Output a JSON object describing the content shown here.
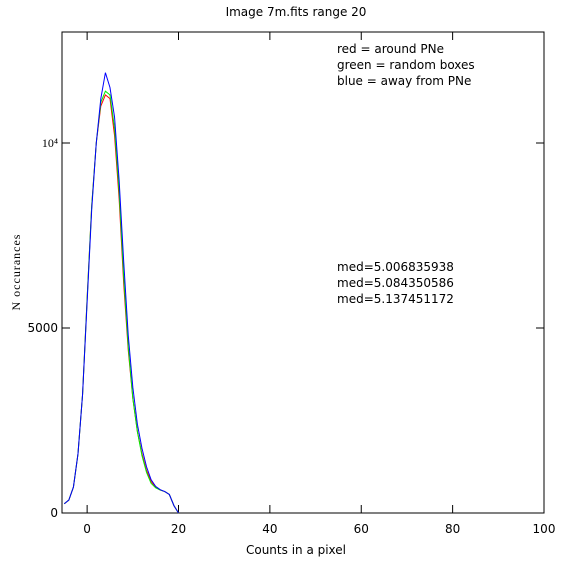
{
  "chart_data": {
    "type": "line",
    "title": "Image 7m.fits   range 20",
    "x_label": "Counts in a pixel",
    "y_label": "N occurances",
    "x": [
      -5,
      -4,
      -3,
      -2,
      -1,
      0,
      1,
      2,
      3,
      4,
      5,
      6,
      7,
      8,
      9,
      10,
      11,
      12,
      13,
      14,
      15,
      16,
      17,
      18,
      19,
      20
    ],
    "series": [
      {
        "name": "red = around PNe",
        "color": "#ff0000",
        "values": [
          250,
          350,
          700,
          1600,
          3200,
          5800,
          8300,
          10000,
          11000,
          11300,
          11200,
          10200,
          8500,
          6200,
          4400,
          3100,
          2200,
          1600,
          1150,
          850,
          700,
          620,
          580,
          500,
          200,
          0
        ]
      },
      {
        "name": "green = random boxes",
        "color": "#00ee00",
        "values": [
          250,
          350,
          700,
          1600,
          3200,
          5800,
          8300,
          10000,
          11100,
          11400,
          11300,
          10400,
          8700,
          6400,
          4500,
          3100,
          2200,
          1550,
          1100,
          800,
          680,
          620,
          580,
          500,
          200,
          0
        ]
      },
      {
        "name": "blue = away from PNe",
        "color": "#0000ff",
        "values": [
          250,
          350,
          700,
          1600,
          3200,
          5700,
          8200,
          10000,
          11200,
          11900,
          11500,
          10700,
          9000,
          6800,
          4800,
          3400,
          2400,
          1750,
          1250,
          900,
          720,
          630,
          580,
          500,
          200,
          0
        ]
      }
    ],
    "annotations": [
      {
        "text": "med=5.006835938",
        "color": "#ff0000"
      },
      {
        "text": "med=5.084350586",
        "color": "#00ee00"
      },
      {
        "text": "med=5.137451172",
        "color": "#0000ff"
      }
    ],
    "xlim": [
      -5.5,
      100
    ],
    "xticks": [
      0,
      20,
      40,
      60,
      80,
      100
    ],
    "ylim": [
      0,
      13000
    ],
    "yticks": [
      0,
      5000,
      {
        "value": 10000,
        "label": "10⁴"
      }
    ]
  }
}
